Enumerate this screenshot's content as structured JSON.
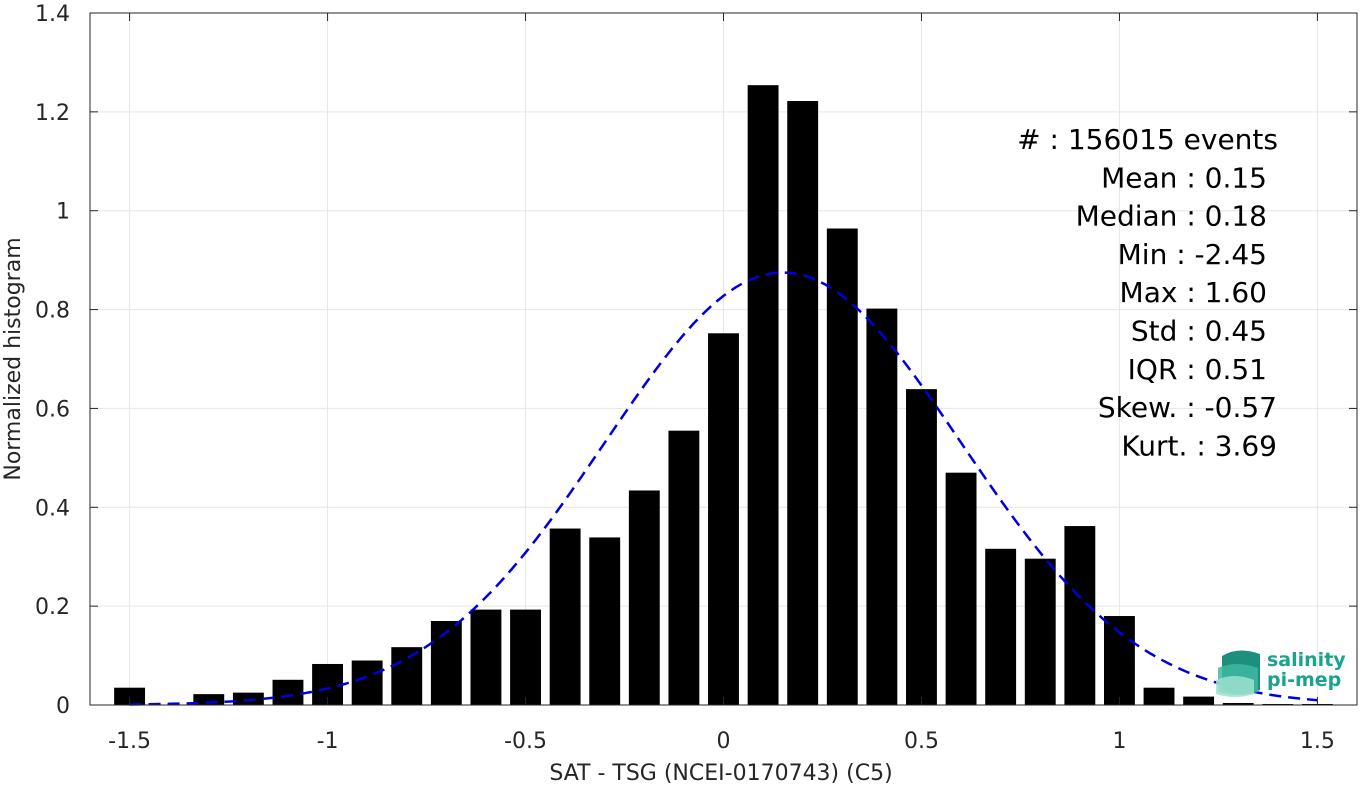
{
  "chart_data": {
    "type": "bar",
    "xlabel": "SAT - TSG (NCEI-0170743) (C5)",
    "ylabel": "Normalized histogram",
    "xlim": [
      -1.6,
      1.6
    ],
    "ylim": [
      0,
      1.4
    ],
    "xticks": [
      -1.5,
      -1,
      -0.5,
      0,
      0.5,
      1,
      1.5
    ],
    "xtick_labels": [
      "-1.5",
      "-1",
      "-0.5",
      "0",
      "0.5",
      "1",
      "1.5"
    ],
    "yticks": [
      0,
      0.2,
      0.4,
      0.6,
      0.8,
      1,
      1.2,
      1.4
    ],
    "ytick_labels": [
      "0",
      "0.2",
      "0.4",
      "0.6",
      "0.8",
      "1",
      "1.2",
      "1.4"
    ],
    "grid": true,
    "bin_width": 0.1,
    "x": [
      -1.5,
      -1.3,
      -1.2,
      -1.1,
      -1.0,
      -0.9,
      -0.8,
      -0.7,
      -0.6,
      -0.5,
      -0.4,
      -0.3,
      -0.2,
      -0.1,
      0.0,
      0.1,
      0.2,
      0.3,
      0.4,
      0.5,
      0.6,
      0.7,
      0.8,
      0.9,
      1.0,
      1.1,
      1.2,
      1.3,
      1.4,
      1.5
    ],
    "values": [
      0.035,
      0.022,
      0.025,
      0.051,
      0.083,
      0.09,
      0.117,
      0.17,
      0.193,
      0.193,
      0.357,
      0.339,
      0.434,
      0.555,
      0.752,
      1.254,
      1.222,
      0.964,
      0.802,
      0.639,
      0.47,
      0.316,
      0.296,
      0.362,
      0.18,
      0.035,
      0.017,
      0.004,
      0.002,
      0.002
    ],
    "bar_color": "#000000",
    "fit_curve": {
      "style": "dashed",
      "color": "#0000dd",
      "mean": 0.15,
      "std": 0.45,
      "peak": 0.875,
      "x_range": [
        -1.5,
        1.5
      ]
    },
    "stats": [
      "#  : 156015 events",
      "Mean : 0.15",
      "Median : 0.18",
      "Min : -2.45",
      "Max : 1.60",
      "Std : 0.45",
      "IQR : 0.51",
      "Skew. : -0.57",
      "Kurt. : 3.69"
    ],
    "stats_position": "top-right"
  },
  "logo": {
    "line1": "salinity",
    "line2": "pi-mep",
    "color": "#1aa38e"
  }
}
